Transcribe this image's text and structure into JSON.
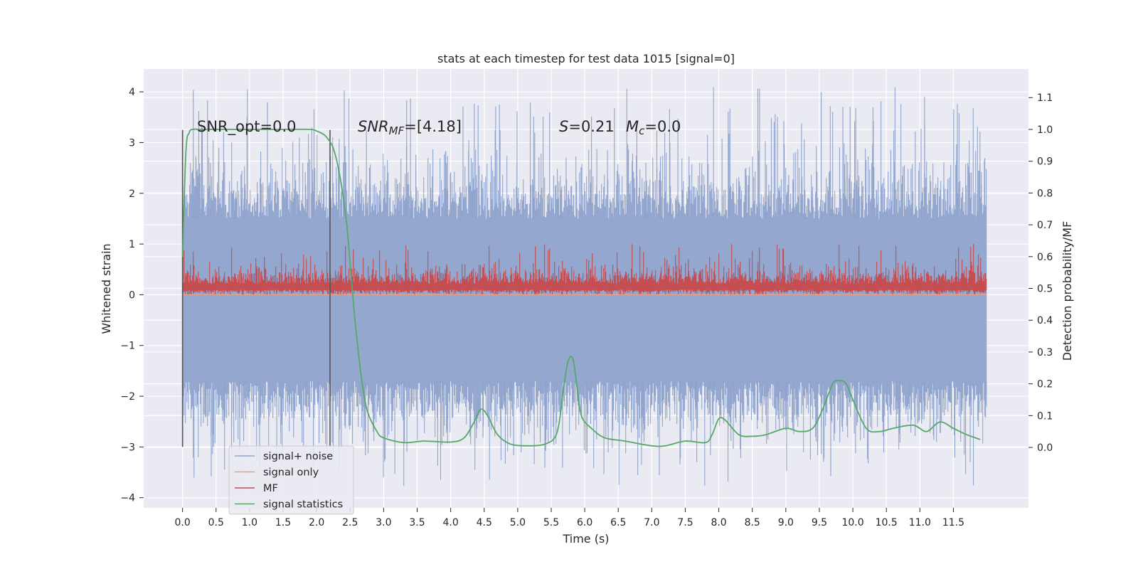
{
  "chart_data": {
    "type": "line",
    "title": "stats at each timestep for test data 1015 [signal=0]",
    "xlabel": "Time (s)",
    "ylabel_left": "Whitened strain",
    "ylabel_right": "Detection probability/MF",
    "xlim": [
      -0.58,
      12.62
    ],
    "ylim_left": [
      -4.2,
      4.45
    ],
    "ylim_right": [
      -0.19,
      1.19
    ],
    "x_ticks": [
      "0.0",
      "0.5",
      "1.0",
      "1.5",
      "2.0",
      "2.5",
      "3.0",
      "3.5",
      "4.0",
      "4.5",
      "5.0",
      "5.5",
      "6.0",
      "6.5",
      "7.0",
      "7.5",
      "8.0",
      "8.5",
      "9.0",
      "9.5",
      "10.0",
      "10.5",
      "11.0",
      "11.5"
    ],
    "y_ticks_left": [
      "−4",
      "−3",
      "−2",
      "−1",
      "0",
      "1",
      "2",
      "3",
      "4"
    ],
    "y_ticks_right": [
      "0.0",
      "0.1",
      "0.2",
      "0.3",
      "0.4",
      "0.5",
      "0.6",
      "0.7",
      "0.8",
      "0.9",
      "1.0",
      "1.1"
    ],
    "grid": true,
    "background": "#eaeaf2",
    "legend_position": "lower-left",
    "annotations": {
      "snr_opt": "SNR_opt=0.0",
      "snr_mf_main": "SNR",
      "snr_mf_sub": "MF",
      "snr_mf_val": "=[4.18]",
      "s_sym": "S",
      "s_val": "=0.21",
      "mc_sym": "M",
      "mc_sub": "c",
      "mc_val": "=0.0"
    },
    "vertical_markers": [
      {
        "x": 0.0,
        "y_range": [
          -3.0,
          3.25
        ]
      },
      {
        "x": 2.2,
        "y_range": [
          -3.0,
          3.25
        ]
      }
    ],
    "series": [
      {
        "name": "signal+ noise",
        "color": "#8fa3cc",
        "axis": "left",
        "x_range": [
          0.0,
          12.0
        ],
        "core_band": [
          -1.7,
          1.5
        ],
        "extreme_range": [
          -3.8,
          4.1
        ]
      },
      {
        "name": "signal only",
        "color": "#ec9e83",
        "axis": "left",
        "x": [
          0.0,
          12.0
        ],
        "y": [
          0.0,
          0.0
        ]
      },
      {
        "name": "MF",
        "color": "#c44e52",
        "axis": "left",
        "x_range": [
          0.0,
          12.0
        ],
        "band": [
          0.0,
          0.75
        ],
        "peak": 1.0
      },
      {
        "name": "signal statistics",
        "color": "#55a868",
        "axis": "right",
        "x": [
          0.0,
          0.05,
          0.1,
          0.15,
          0.25,
          0.5,
          1.0,
          1.5,
          1.9,
          2.0,
          2.1,
          2.15,
          2.25,
          2.35,
          2.45,
          2.55,
          2.65,
          2.75,
          2.9,
          3.0,
          3.3,
          3.6,
          4.0,
          4.2,
          4.35,
          4.45,
          4.55,
          4.7,
          4.9,
          5.2,
          5.4,
          5.55,
          5.62,
          5.68,
          5.75,
          5.82,
          5.88,
          5.95,
          6.1,
          6.3,
          6.6,
          7.0,
          7.2,
          7.5,
          7.8,
          7.9,
          8.0,
          8.1,
          8.3,
          8.5,
          8.7,
          9.0,
          9.2,
          9.4,
          9.55,
          9.7,
          9.8,
          9.9,
          10.0,
          10.2,
          10.4,
          10.6,
          10.9,
          11.1,
          11.3,
          11.5,
          11.7,
          11.9
        ],
        "y": [
          0.6,
          0.93,
          0.99,
          1.0,
          1.0,
          1.0,
          1.0,
          1.0,
          1.0,
          0.995,
          0.985,
          0.975,
          0.94,
          0.85,
          0.7,
          0.45,
          0.25,
          0.12,
          0.05,
          0.03,
          0.015,
          0.02,
          0.017,
          0.03,
          0.08,
          0.12,
          0.1,
          0.04,
          0.01,
          0.005,
          0.01,
          0.03,
          0.08,
          0.18,
          0.27,
          0.28,
          0.2,
          0.1,
          0.06,
          0.03,
          0.02,
          0.005,
          0.005,
          0.02,
          0.015,
          0.04,
          0.09,
          0.085,
          0.04,
          0.035,
          0.04,
          0.06,
          0.05,
          0.06,
          0.12,
          0.2,
          0.21,
          0.2,
          0.15,
          0.06,
          0.05,
          0.06,
          0.07,
          0.05,
          0.08,
          0.06,
          0.04,
          0.025
        ]
      }
    ]
  }
}
